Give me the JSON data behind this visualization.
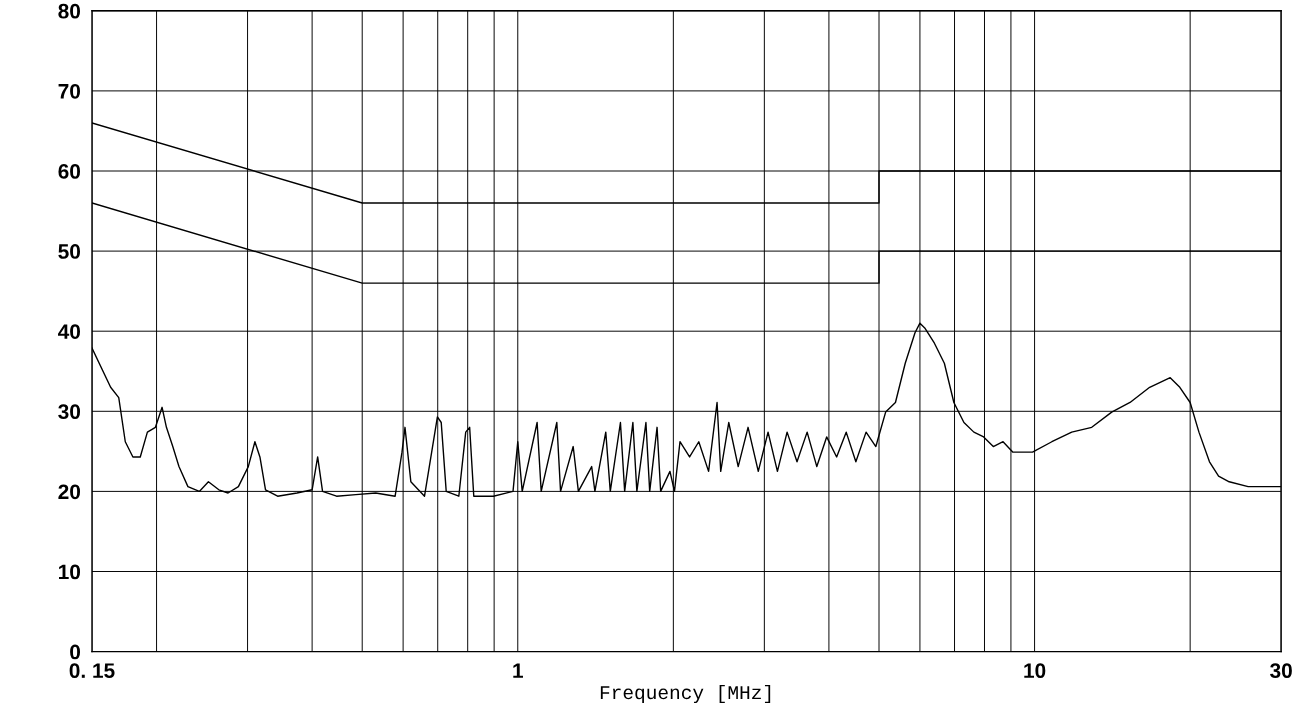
{
  "chart_data": {
    "type": "line",
    "xlabel": "Frequency [MHz]",
    "log": "x",
    "grid": true,
    "marker": "none",
    "line_style": "solid",
    "xlim": [
      0.15,
      30
    ],
    "ylim": [
      0,
      80
    ],
    "xticks": [
      {
        "value": 0.15,
        "label": "0. 15"
      },
      {
        "value": 0.2,
        "label": null
      },
      {
        "value": 0.3,
        "label": null
      },
      {
        "value": 0.4,
        "label": null
      },
      {
        "value": 0.5,
        "label": null
      },
      {
        "value": 0.6,
        "label": null
      },
      {
        "value": 0.7,
        "label": null
      },
      {
        "value": 0.8,
        "label": null
      },
      {
        "value": 0.9,
        "label": null
      },
      1,
      {
        "value": 2,
        "label": null
      },
      {
        "value": 3,
        "label": null
      },
      {
        "value": 4,
        "label": null
      },
      {
        "value": 5,
        "label": null
      },
      {
        "value": 6,
        "label": null
      },
      {
        "value": 7,
        "label": null
      },
      {
        "value": 8,
        "label": null
      },
      {
        "value": 9,
        "label": null
      },
      10,
      {
        "value": 20,
        "label": null
      },
      30
    ],
    "yticks": [
      0,
      10,
      20,
      30,
      40,
      50,
      60,
      70,
      80
    ],
    "series": [
      {
        "color": "#000000",
        "x": [
          0.15,
          0.5,
          5,
          5,
          30
        ],
        "values": [
          66,
          56,
          56,
          60,
          60
        ]
      },
      {
        "color": "#000000",
        "x": [
          0.15,
          0.5,
          5,
          5,
          30
        ],
        "values": [
          56,
          46,
          46,
          50,
          50
        ]
      },
      {
        "color": "#000000",
        "x": [
          0.15,
          0.163,
          0.169,
          0.174,
          0.18,
          0.186,
          0.192,
          0.199,
          0.205,
          0.209,
          0.215,
          0.221,
          0.23,
          0.242,
          0.252,
          0.264,
          0.275,
          0.288,
          0.301,
          0.31,
          0.317,
          0.325,
          0.343,
          0.374,
          0.4,
          0.41,
          0.419,
          0.446,
          0.486,
          0.531,
          0.579,
          0.597,
          0.605,
          0.621,
          0.66,
          0.699,
          0.711,
          0.727,
          0.769,
          0.793,
          0.807,
          0.822,
          0.897,
          0.979,
          1.0,
          1.02,
          1.09,
          1.11,
          1.19,
          1.21,
          1.28,
          1.31,
          1.39,
          1.41,
          1.48,
          1.51,
          1.58,
          1.61,
          1.67,
          1.7,
          1.77,
          1.8,
          1.86,
          1.89,
          1.97,
          2.01,
          2.06,
          2.15,
          2.24,
          2.34,
          2.43,
          2.47,
          2.56,
          2.67,
          2.79,
          2.92,
          3.05,
          3.18,
          3.32,
          3.47,
          3.63,
          3.79,
          3.96,
          4.14,
          4.32,
          4.51,
          4.72,
          4.93,
          5.15,
          5.38,
          5.62,
          5.87,
          6.0,
          6.13,
          6.4,
          6.69,
          6.98,
          7.3,
          7.63,
          7.97,
          8.32,
          8.69,
          9.08,
          9.91,
          10.8,
          11.8,
          12.9,
          14.1,
          15.3,
          16.7,
          18.3,
          19.1,
          20.0,
          20.8,
          21.8,
          22.7,
          23.8,
          25.9,
          30
        ],
        "values": [
          37.9,
          33.0,
          31.7,
          26.2,
          24.3,
          24.3,
          27.4,
          28.0,
          30.5,
          28.0,
          25.6,
          23.1,
          20.6,
          20.0,
          21.2,
          20.2,
          19.8,
          20.6,
          23.1,
          26.2,
          24.3,
          20.2,
          19.4,
          19.8,
          20.2,
          24.3,
          20.0,
          19.4,
          19.6,
          19.8,
          19.4,
          24.9,
          28.0,
          21.2,
          19.4,
          29.3,
          28.6,
          20.0,
          19.4,
          27.4,
          28.0,
          19.4,
          19.4,
          20.0,
          26.2,
          20.0,
          28.6,
          20.0,
          28.6,
          20.0,
          25.6,
          20.0,
          23.1,
          20.0,
          27.4,
          20.0,
          28.6,
          20.0,
          28.6,
          20.0,
          28.6,
          20.0,
          28.0,
          20.0,
          22.5,
          20.0,
          26.2,
          24.3,
          26.2,
          22.5,
          31.1,
          22.5,
          28.6,
          23.1,
          28.0,
          22.5,
          27.4,
          22.5,
          27.4,
          23.7,
          27.4,
          23.1,
          26.8,
          24.3,
          27.4,
          23.7,
          27.4,
          25.6,
          29.9,
          31.1,
          36.0,
          39.8,
          41.0,
          40.4,
          38.5,
          36.0,
          31.1,
          28.6,
          27.4,
          26.8,
          25.6,
          26.2,
          24.9,
          24.9,
          26.2,
          27.4,
          28.0,
          29.9,
          31.1,
          33.0,
          34.2,
          33.0,
          31.1,
          27.4,
          23.7,
          21.9,
          21.2,
          20.6,
          20.6
        ]
      }
    ]
  }
}
